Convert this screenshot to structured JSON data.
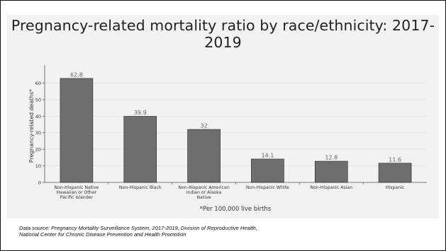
{
  "chart_data": {
    "type": "bar",
    "title": "Pregnancy-related mortality ratio by race/ethnicity: 2017-2019",
    "ylabel": "Pregnancy-related deaths*",
    "xlabel": "*Per 100,000 live births",
    "ylim": [
      0,
      70
    ],
    "yticks": [
      "0",
      "10",
      "20",
      "30",
      "40",
      "50",
      "60"
    ],
    "grid": true,
    "categories": [
      [
        "Non-Hispanic Native",
        "Hawaiian or Other",
        "Pacific Islander"
      ],
      [
        "Non-Hispanic Black"
      ],
      [
        "Non-Hispanic American",
        "Indian or Alaska",
        "Native"
      ],
      [
        "Non-Hispanic White"
      ],
      [
        "Non-Hispanic Asian"
      ],
      [
        "Hispanic"
      ]
    ],
    "values": [
      62.8,
      39.9,
      32,
      14.1,
      12.8,
      11.6
    ],
    "value_labels": [
      "62.8",
      "39.9",
      "32",
      "14.1",
      "12.8",
      "11.6"
    ],
    "bar_color": "#6e6e6e"
  },
  "footer": {
    "source_line1": "Data source: Pregnancy Mortality Surveillance System, 2017-2019, Division of Reproductive Health,",
    "source_line2": "National Center for Chronic Disease Prevention and Health Promotion"
  }
}
